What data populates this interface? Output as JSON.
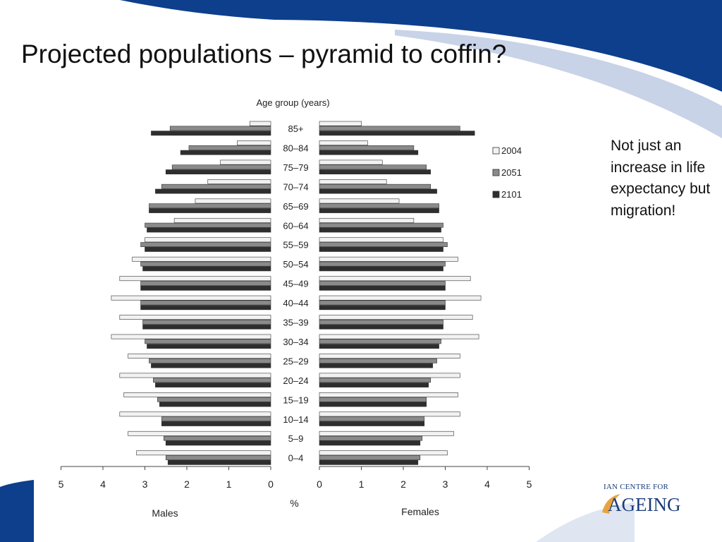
{
  "slide": {
    "title": "Projected populations – pyramid to coffin?",
    "note": "Not just an increase in life expectancy but migration!",
    "logo_line1": "IAN CENTRE FOR",
    "logo_line2": "AGEING",
    "colors": {
      "banner": "#0d3f8c",
      "swoosh_light": "#c8d3e8"
    }
  },
  "chart_data": {
    "type": "bar",
    "orientation": "horizontal-pyramid",
    "y_axis_title": "Age group (years)",
    "x_axis_title": "%",
    "left_label": "Males",
    "right_label": "Females",
    "left_ticks": [
      "5",
      "4",
      "3",
      "2",
      "1",
      "0"
    ],
    "right_ticks": [
      "0",
      "1",
      "2",
      "3",
      "4",
      "5"
    ],
    "xlim": [
      0,
      5
    ],
    "legend_position": "right",
    "categories": [
      "85+",
      "80–84",
      "75–79",
      "70–74",
      "65–69",
      "60–64",
      "55–59",
      "50–54",
      "45–49",
      "40–44",
      "35–39",
      "30–34",
      "25–29",
      "20–24",
      "15–19",
      "10–14",
      "5–9",
      "0–4"
    ],
    "series": [
      {
        "name": "2004",
        "color": "#f2f2f2",
        "males": [
          0.5,
          0.8,
          1.2,
          1.5,
          1.8,
          2.3,
          3.0,
          3.3,
          3.6,
          3.8,
          3.6,
          3.8,
          3.4,
          3.6,
          3.5,
          3.6,
          3.4,
          3.2
        ],
        "females": [
          1.0,
          1.15,
          1.5,
          1.6,
          1.9,
          2.25,
          2.95,
          3.3,
          3.6,
          3.85,
          3.65,
          3.8,
          3.35,
          3.35,
          3.3,
          3.35,
          3.2,
          3.05
        ]
      },
      {
        "name": "2051",
        "color": "#8a8a8a",
        "males": [
          2.4,
          1.95,
          2.35,
          2.6,
          2.9,
          3.0,
          3.1,
          3.1,
          3.1,
          3.1,
          3.05,
          3.0,
          2.9,
          2.8,
          2.7,
          2.6,
          2.55,
          2.5
        ],
        "females": [
          3.35,
          2.25,
          2.55,
          2.65,
          2.85,
          2.95,
          3.05,
          3.0,
          3.0,
          3.0,
          2.95,
          2.9,
          2.8,
          2.65,
          2.55,
          2.5,
          2.45,
          2.4
        ]
      },
      {
        "name": "2101",
        "color": "#2e2e2e",
        "males": [
          2.85,
          2.15,
          2.5,
          2.75,
          2.9,
          2.95,
          3.0,
          3.05,
          3.1,
          3.1,
          3.05,
          2.95,
          2.85,
          2.75,
          2.65,
          2.6,
          2.5,
          2.45
        ],
        "females": [
          3.7,
          2.35,
          2.65,
          2.8,
          2.85,
          2.9,
          2.95,
          2.95,
          3.0,
          3.0,
          2.95,
          2.85,
          2.7,
          2.6,
          2.55,
          2.5,
          2.4,
          2.35
        ]
      }
    ]
  }
}
